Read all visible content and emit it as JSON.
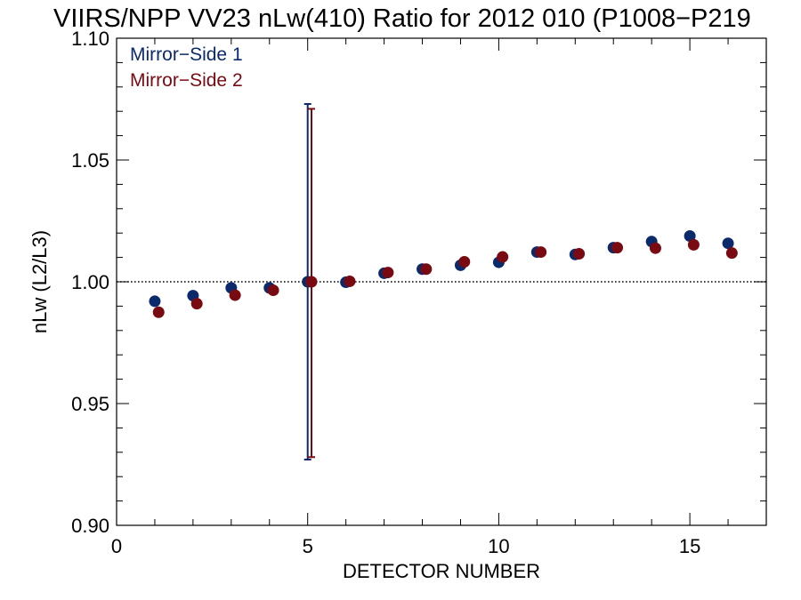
{
  "chart_data": {
    "type": "scatter",
    "title": "VIIRS/NPP VV23 nLw(410) Ratio for 2012 010 (P1008−P219",
    "xlabel": "DETECTOR NUMBER",
    "ylabel": "nLw (L2/L3)",
    "xlim": [
      0,
      17
    ],
    "ylim": [
      0.9,
      1.1
    ],
    "x_ticks": [
      0,
      5,
      10,
      15
    ],
    "x_tick_labels": [
      "0",
      "5",
      "10",
      "15"
    ],
    "y_ticks": [
      0.9,
      0.95,
      1.0,
      1.05,
      1.1
    ],
    "y_tick_labels": [
      "0.90",
      "0.95",
      "1.00",
      "1.05",
      "1.10"
    ],
    "reference_line": 1.0,
    "grid": false,
    "legend_position": "top-left",
    "series": [
      {
        "name": "Mirror−Side 1",
        "color": "#0b2a6b",
        "x": [
          1,
          2,
          3,
          4,
          5,
          6,
          7,
          8,
          9,
          10,
          11,
          12,
          13,
          14,
          15,
          16
        ],
        "y": [
          0.992,
          0.9943,
          0.9975,
          0.9975,
          1.0,
          0.9998,
          1.0035,
          1.0052,
          1.0068,
          1.008,
          1.0122,
          1.0112,
          1.014,
          1.0165,
          1.0188,
          1.0158
        ],
        "error_bar": {
          "x": 5,
          "low": 0.927,
          "high": 1.073
        }
      },
      {
        "name": "Mirror−Side 2",
        "color": "#7a0a12",
        "x": [
          1.1,
          2.1,
          3.1,
          4.1,
          5.1,
          6.1,
          7.1,
          8.1,
          9.1,
          10.1,
          11.1,
          12.1,
          13.1,
          14.1,
          15.1,
          16.1
        ],
        "y": [
          0.9875,
          0.991,
          0.9945,
          0.9965,
          1.0,
          1.0002,
          1.0038,
          1.0052,
          1.0082,
          1.0102,
          1.0122,
          1.0115,
          1.014,
          1.0138,
          1.0152,
          1.0118
        ],
        "error_bar": {
          "x": 5.1,
          "low": 0.928,
          "high": 1.071
        }
      }
    ]
  }
}
